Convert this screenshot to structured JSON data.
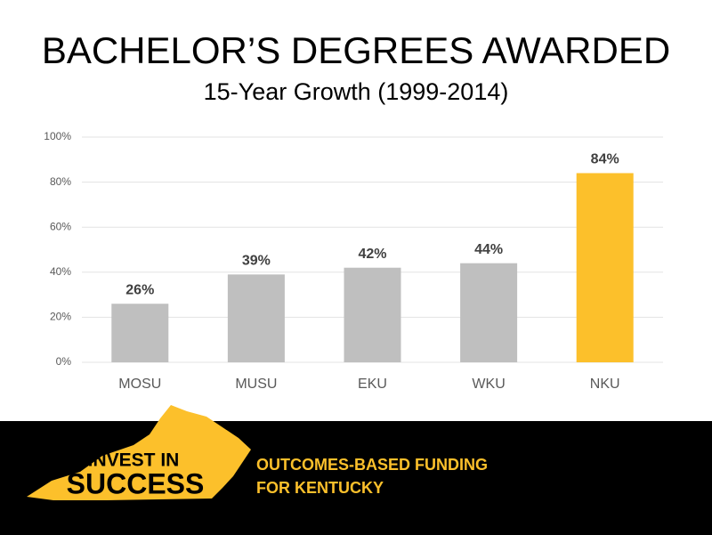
{
  "chart_data": {
    "type": "bar",
    "title": "BACHELOR’S DEGREES AWARDED",
    "subtitle": "15-Year Growth (1999-2014)",
    "categories": [
      "MOSU",
      "MUSU",
      "EKU",
      "WKU",
      "NKU"
    ],
    "values": [
      26,
      39,
      42,
      44,
      84
    ],
    "value_labels": [
      "26%",
      "39%",
      "42%",
      "44%",
      "84%"
    ],
    "colors": [
      "#bfbfbf",
      "#bfbfbf",
      "#bfbfbf",
      "#bfbfbf",
      "#fcc02b"
    ],
    "ylim": [
      0,
      100
    ],
    "yticks": [
      {
        "value": 0,
        "label": "0%"
      },
      {
        "value": 20,
        "label": "20%"
      },
      {
        "value": 40,
        "label": "40%"
      },
      {
        "value": 60,
        "label": "60%"
      },
      {
        "value": 80,
        "label": "80%"
      },
      {
        "value": 100,
        "label": "100%"
      }
    ],
    "grid": true
  },
  "footer": {
    "logo_text": [
      "INVEST IN",
      "SUCCESS"
    ],
    "tagline": [
      "OUTCOMES-BASED FUNDING",
      "FOR KENTUCKY"
    ]
  }
}
